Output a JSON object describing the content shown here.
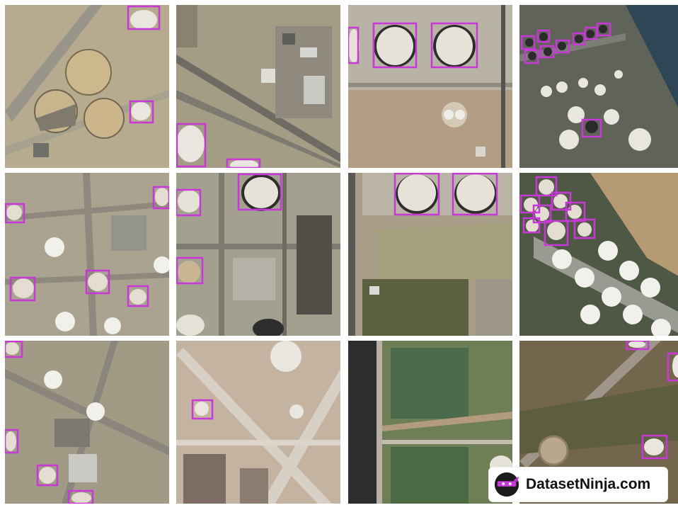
{
  "brand": {
    "label": "DatasetNinja.com",
    "accent": "#c838d8"
  },
  "grid": {
    "rows": 3,
    "cols": 4
  },
  "colors": {
    "bbox": "#c838d8",
    "ground": "#b9ad97",
    "tank": "#e9e6df",
    "shadow": "#2b2b2b",
    "veg": "#6d7a4e",
    "road": "#9c978c"
  }
}
